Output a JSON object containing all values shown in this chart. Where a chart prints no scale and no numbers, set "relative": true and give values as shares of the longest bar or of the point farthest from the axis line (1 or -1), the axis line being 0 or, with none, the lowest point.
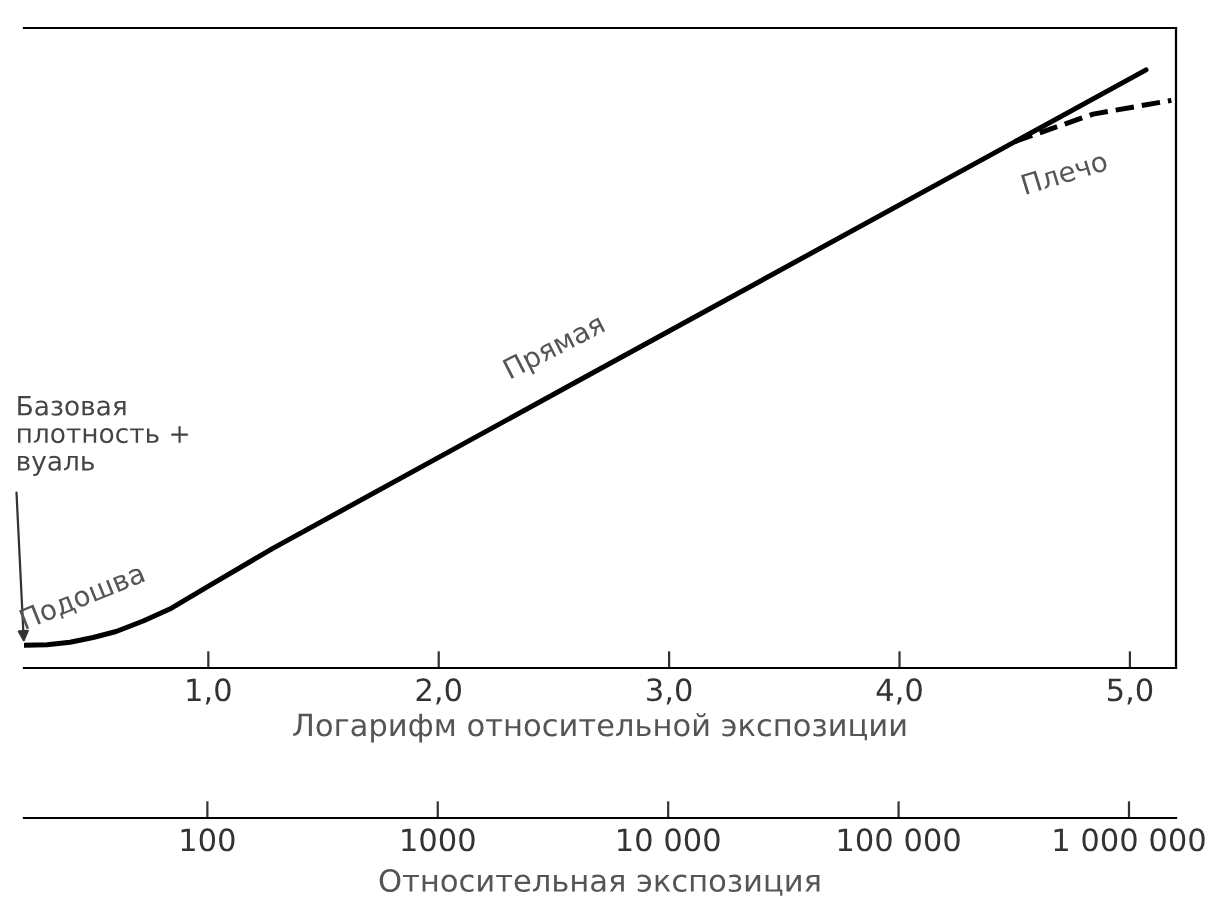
{
  "chart_data": {
    "type": "line",
    "relative": true,
    "xlabel": "Логарифм относительной экспозиции",
    "x2label": "Относительная экспозиция",
    "xlim": [
      0.2,
      5.2
    ],
    "xticks": [
      {
        "value": 1,
        "label": "1,0"
      },
      {
        "value": 2,
        "label": "2,0"
      },
      {
        "value": 3,
        "label": "3,0"
      },
      {
        "value": 4,
        "label": "4,0"
      },
      {
        "value": 5,
        "label": "5,0"
      }
    ],
    "log": "x2",
    "x2lim": [
      16,
      1600000
    ],
    "x2ticks": [
      100,
      1000,
      {
        "value": 10000,
        "label": "10 000"
      },
      {
        "value": 100000,
        "label": "100 000"
      },
      {
        "value": 1000000,
        "label": "1 000 000"
      }
    ],
    "series": [
      {
        "color": "#000000",
        "line_style": "solid",
        "x": [
          0.2,
          0.3,
          0.4,
          0.5,
          0.6,
          0.72,
          0.84,
          1.01,
          1.28,
          2.6,
          5.07
        ],
        "values": [
          0.038,
          0.039,
          0.043,
          0.051,
          0.061,
          0.079,
          0.1,
          0.139,
          0.2,
          0.479,
          1.0
        ]
      },
      {
        "color": "#000000",
        "line_style": "dashed",
        "x": [
          4.5,
          4.84,
          5.18
        ],
        "values": [
          0.88,
          0.926,
          0.949
        ]
      }
    ],
    "annotations": [
      {
        "text": "Базовая\nплотность +\nвуаль",
        "x": 0.2,
        "y": 0.038
      },
      {
        "text": "Подошва",
        "x": 0.6,
        "y": 0.061
      },
      {
        "text": "Прямая",
        "x": 2.6,
        "y": 0.479
      },
      {
        "text": "Плечо",
        "x": 4.5,
        "y": 0.88
      }
    ],
    "grid": false,
    "legend": false
  }
}
